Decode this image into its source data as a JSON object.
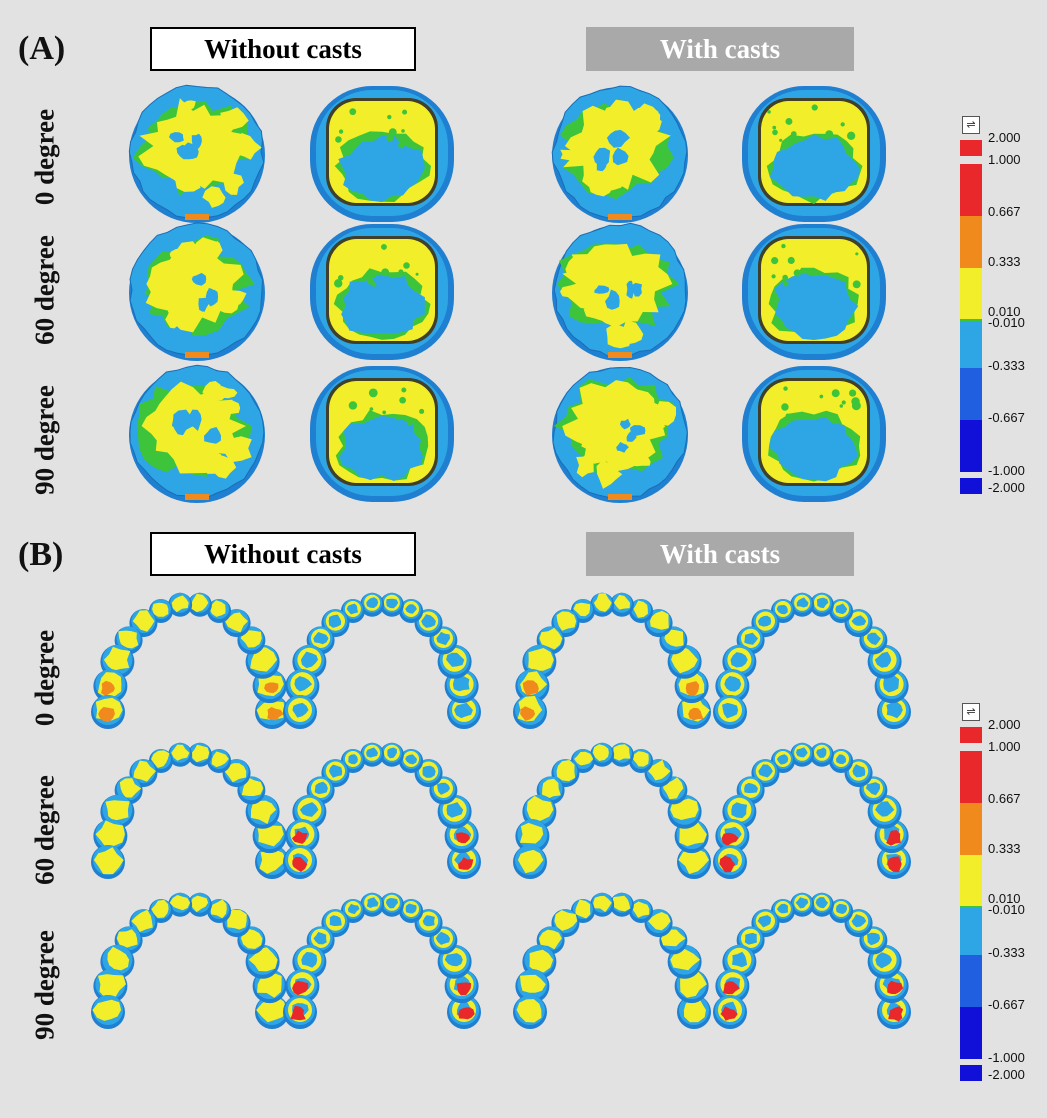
{
  "panels": [
    {
      "label": "(A)",
      "header_without": "Without casts",
      "header_with": "With casts",
      "rows": [
        "0 degree",
        "60 degree",
        "90 degree"
      ]
    },
    {
      "label": "(B)",
      "header_without": "Without casts",
      "header_with": "With casts",
      "rows": [
        "0 degree",
        "60 degree",
        "90 degree"
      ]
    }
  ],
  "color_scale": {
    "ticks": [
      "2.000",
      "1.000",
      "0.667",
      "0.333",
      "0.010",
      "-0.010",
      "-0.333",
      "-0.667",
      "-1.000",
      "-2.000"
    ],
    "colors": {
      "red": "#e8282a",
      "orange": "#f08a1c",
      "yellow": "#f2ee2a",
      "green": "#3ec43a",
      "light_blue": "#2ea6e6",
      "mid_blue": "#1f5fe0",
      "dark_blue": "#1010d8"
    },
    "control_icon": "slider-settings-icon"
  }
}
